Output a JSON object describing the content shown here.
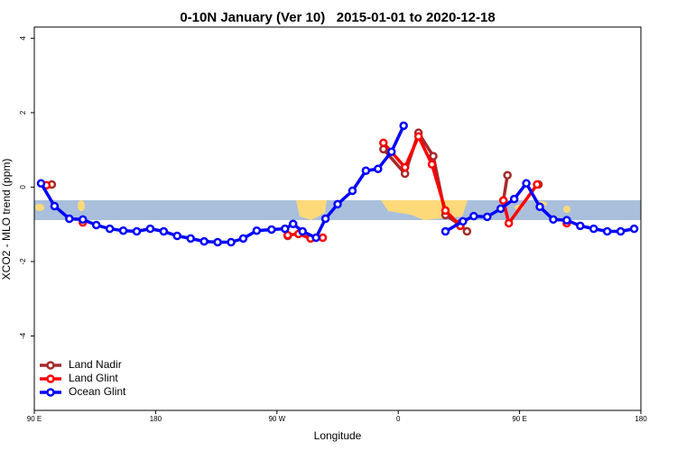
{
  "chart_data": {
    "type": "line",
    "title": "0-10N January (Ver 10)   2015-01-01 to 2020-12-18",
    "x_label": "Longitude",
    "y_label": "XCO2 - MLO trend (ppm)",
    "xlim": [
      90,
      540
    ],
    "xticks": [
      {
        "value": 90,
        "label": "90 E"
      },
      180,
      {
        "value": 270,
        "label": "90 W"
      },
      {
        "value": 360,
        "label": "0"
      },
      {
        "value": 450,
        "label": "90 E"
      },
      {
        "value": 540,
        "label": "180"
      }
    ],
    "ylim": [
      -6,
      4.3
    ],
    "yticks": [
      -4,
      -2,
      0,
      2,
      4
    ],
    "legend": "bottom-left",
    "series": [
      {
        "name": "Land Nadir",
        "color": "#a52a2a",
        "x": [
          103,
          null,
          278,
          null,
          349,
          365,
          375,
          386,
          395,
          405,
          411,
          null,
          438,
          441,
          null,
          464
        ],
        "values": [
          0.07,
          null,
          -1.31,
          null,
          1.02,
          0.36,
          1.46,
          0.83,
          -0.75,
          -0.99,
          -1.19,
          null,
          -0.36,
          0.32,
          null,
          0.07
        ]
      },
      {
        "name": "Land Glint",
        "color": "#ff0000",
        "x": [
          99,
          null,
          126,
          null,
          278,
          286,
          295,
          304,
          null,
          349,
          365,
          375,
          385,
          395,
          406,
          null,
          438,
          442,
          463,
          null,
          485
        ],
        "values": [
          0.05,
          null,
          -0.95,
          null,
          -1.29,
          -1.26,
          -1.38,
          -1.36,
          null,
          1.19,
          0.53,
          1.36,
          0.61,
          -0.63,
          -1.04,
          null,
          -0.36,
          -0.97,
          0.07,
          null,
          -0.97
        ]
      },
      {
        "name": "Ocean Glint",
        "color": "#0000ff",
        "x": [
          95,
          105,
          116,
          126,
          136,
          146,
          156,
          166,
          176,
          186,
          196,
          206,
          216,
          226,
          236,
          245,
          255,
          266,
          276,
          282,
          289,
          299,
          306,
          315,
          326,
          336,
          345,
          355,
          364,
          null,
          395,
          408,
          416,
          426,
          436,
          446,
          455,
          465,
          475,
          485,
          495,
          505,
          515,
          525,
          535
        ],
        "values": [
          0.1,
          -0.51,
          -0.85,
          -0.87,
          -1.02,
          -1.12,
          -1.17,
          -1.19,
          -1.12,
          -1.19,
          -1.31,
          -1.38,
          -1.46,
          -1.48,
          -1.48,
          -1.38,
          -1.17,
          -1.14,
          -1.12,
          -0.99,
          -1.19,
          -1.36,
          -0.85,
          -0.46,
          -0.1,
          0.44,
          0.49,
          0.95,
          1.65,
          null,
          -1.19,
          -0.92,
          -0.78,
          -0.8,
          -0.58,
          -0.32,
          0.1,
          -0.53,
          -0.87,
          -0.89,
          -1.04,
          -1.12,
          -1.19,
          -1.19,
          -1.12
        ]
      }
    ]
  }
}
